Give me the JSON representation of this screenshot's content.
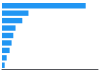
{
  "chart_data": {
    "type": "bar",
    "orientation": "horizontal",
    "categories": [
      null,
      null,
      null,
      null,
      null,
      null,
      null,
      null,
      null
    ],
    "values": [
      6.8,
      2.15,
      1.65,
      1.1,
      0.92,
      0.78,
      0.62,
      0.38,
      0.22
    ],
    "color": "#2196F3",
    "xlim": [
      0,
      7.8
    ],
    "grid": false,
    "tick_labels": false
  }
}
